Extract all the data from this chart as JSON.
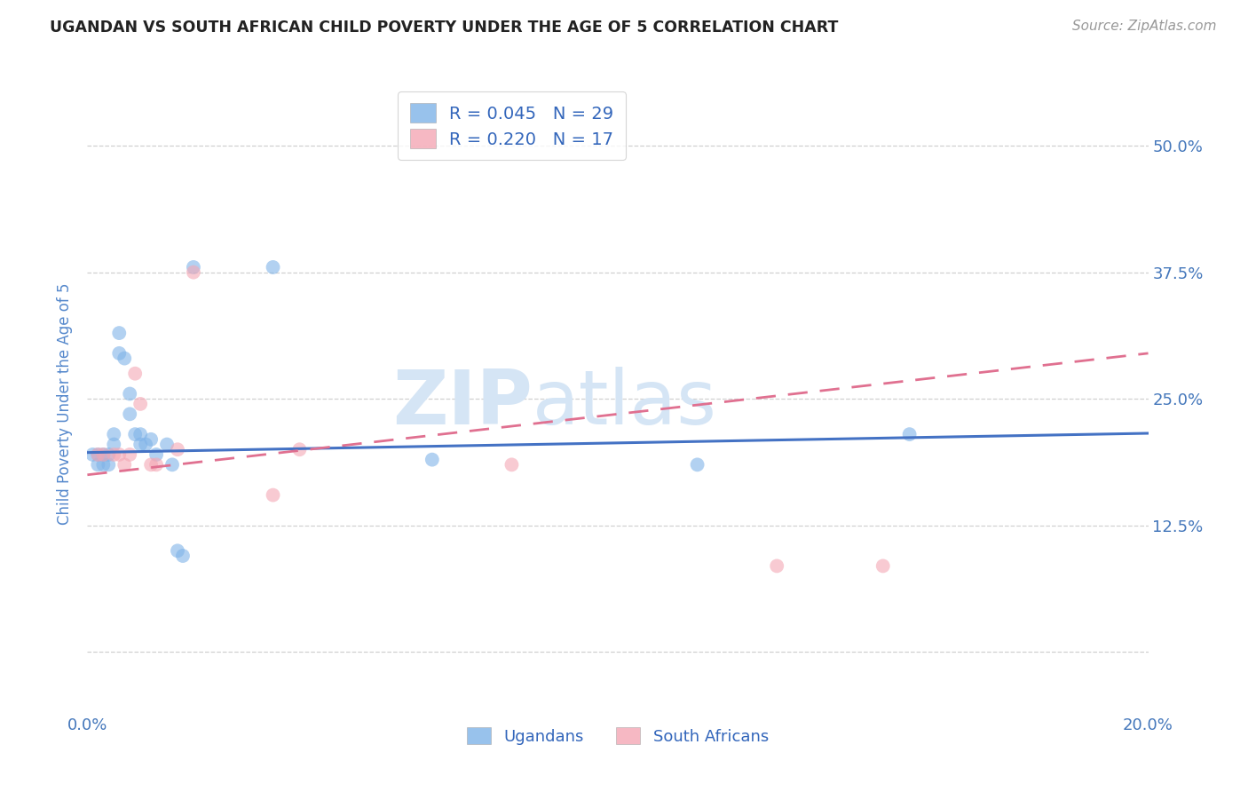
{
  "title": "UGANDAN VS SOUTH AFRICAN CHILD POVERTY UNDER THE AGE OF 5 CORRELATION CHART",
  "source": "Source: ZipAtlas.com",
  "ylabel": "Child Poverty Under the Age of 5",
  "watermark_zip": "ZIP",
  "watermark_atlas": "atlas",
  "legend_blue_r": "R = 0.045",
  "legend_blue_n": "N = 29",
  "legend_pink_r": "R = 0.220",
  "legend_pink_n": "N = 17",
  "legend_label_blue": "Ugandans",
  "legend_label_pink": "South Africans",
  "xlim": [
    0.0,
    0.2
  ],
  "ylim": [
    -0.06,
    0.55
  ],
  "yticks": [
    0.0,
    0.125,
    0.25,
    0.375,
    0.5
  ],
  "ytick_labels": [
    "",
    "12.5%",
    "25.0%",
    "37.5%",
    "50.0%"
  ],
  "xticks": [
    0.0,
    0.05,
    0.1,
    0.15,
    0.2
  ],
  "xtick_labels": [
    "0.0%",
    "",
    "",
    "",
    "20.0%"
  ],
  "blue_scatter_x": [
    0.001,
    0.002,
    0.002,
    0.003,
    0.003,
    0.004,
    0.004,
    0.005,
    0.005,
    0.006,
    0.006,
    0.007,
    0.008,
    0.008,
    0.009,
    0.01,
    0.01,
    0.011,
    0.012,
    0.013,
    0.015,
    0.016,
    0.017,
    0.018,
    0.02,
    0.035,
    0.065,
    0.115,
    0.155
  ],
  "blue_scatter_y": [
    0.195,
    0.195,
    0.185,
    0.185,
    0.195,
    0.185,
    0.195,
    0.205,
    0.215,
    0.315,
    0.295,
    0.29,
    0.255,
    0.235,
    0.215,
    0.215,
    0.205,
    0.205,
    0.21,
    0.195,
    0.205,
    0.185,
    0.1,
    0.095,
    0.38,
    0.38,
    0.19,
    0.185,
    0.215
  ],
  "pink_scatter_x": [
    0.002,
    0.003,
    0.005,
    0.006,
    0.007,
    0.008,
    0.009,
    0.01,
    0.012,
    0.013,
    0.017,
    0.02,
    0.035,
    0.04,
    0.08,
    0.13,
    0.15
  ],
  "pink_scatter_y": [
    0.195,
    0.195,
    0.195,
    0.195,
    0.185,
    0.195,
    0.275,
    0.245,
    0.185,
    0.185,
    0.2,
    0.375,
    0.155,
    0.2,
    0.185,
    0.085,
    0.085
  ],
  "blue_line_x": [
    0.0,
    0.2
  ],
  "blue_line_y": [
    0.197,
    0.216
  ],
  "pink_line_x": [
    0.0,
    0.2
  ],
  "pink_line_y": [
    0.175,
    0.295
  ],
  "background_color": "#ffffff",
  "scatter_alpha": 0.6,
  "scatter_size": 130,
  "blue_color": "#7fb3e8",
  "pink_color": "#f4a7b4",
  "blue_line_color": "#4472c4",
  "pink_line_color": "#e07090",
  "grid_color": "#d0d0d0",
  "title_color": "#222222",
  "axis_label_color": "#5588cc",
  "tick_color_blue": "#4477bb",
  "watermark_color": "#d5e5f5",
  "legend_text_color": "#3366bb"
}
